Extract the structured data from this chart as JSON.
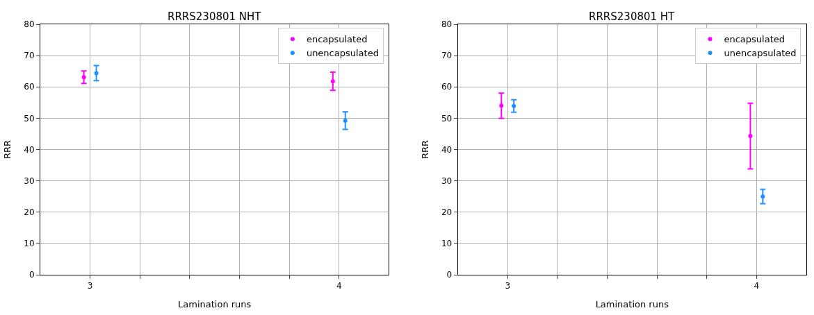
{
  "chart_data": [
    {
      "type": "scatter",
      "title": "RRRS230801 NHT",
      "xlabel": "Lamination runs",
      "ylabel": "RRR",
      "xlim": [
        2.8,
        4.2
      ],
      "xticks": [
        {
          "value": 3.0,
          "label": "3"
        },
        {
          "value": 3.2,
          "label": null
        },
        {
          "value": 3.4,
          "label": null
        },
        {
          "value": 3.6,
          "label": null
        },
        {
          "value": 3.8,
          "label": null
        },
        {
          "value": 4.0,
          "label": "4"
        }
      ],
      "ylim": [
        0,
        80
      ],
      "yticks": [
        0,
        10,
        20,
        30,
        40,
        50,
        60,
        70,
        80
      ],
      "grid": true,
      "legend": "top right",
      "marker": "circle",
      "series": [
        {
          "name": "encapsulated",
          "color": "#ff00ff",
          "x": [
            2.975,
            3.975
          ],
          "values": [
            63.1,
            61.8
          ],
          "errors": [
            2.0,
            2.9
          ]
        },
        {
          "name": "unencapsulated",
          "color": "#1e90ff",
          "x": [
            3.025,
            4.025
          ],
          "values": [
            64.4,
            49.2
          ],
          "errors": [
            2.4,
            2.8
          ]
        }
      ]
    },
    {
      "type": "scatter",
      "title": "RRRS230801 HT",
      "xlabel": "Lamination runs",
      "ylabel": "RRR",
      "xlim": [
        2.8,
        4.2
      ],
      "xticks": [
        {
          "value": 3.0,
          "label": "3"
        },
        {
          "value": 3.2,
          "label": null
        },
        {
          "value": 3.4,
          "label": null
        },
        {
          "value": 3.6,
          "label": null
        },
        {
          "value": 3.8,
          "label": null
        },
        {
          "value": 4.0,
          "label": "4"
        }
      ],
      "ylim": [
        0,
        80
      ],
      "yticks": [
        0,
        10,
        20,
        30,
        40,
        50,
        60,
        70,
        80
      ],
      "grid": true,
      "legend": "top right",
      "marker": "circle",
      "series": [
        {
          "name": "encapsulated",
          "color": "#ff00ff",
          "x": [
            2.975,
            3.975
          ],
          "values": [
            54.0,
            44.3
          ],
          "errors": [
            4.0,
            10.5
          ]
        },
        {
          "name": "unencapsulated",
          "color": "#1e90ff",
          "x": [
            3.025,
            4.025
          ],
          "values": [
            53.9,
            25.0
          ],
          "errors": [
            2.0,
            2.3
          ]
        }
      ]
    }
  ]
}
